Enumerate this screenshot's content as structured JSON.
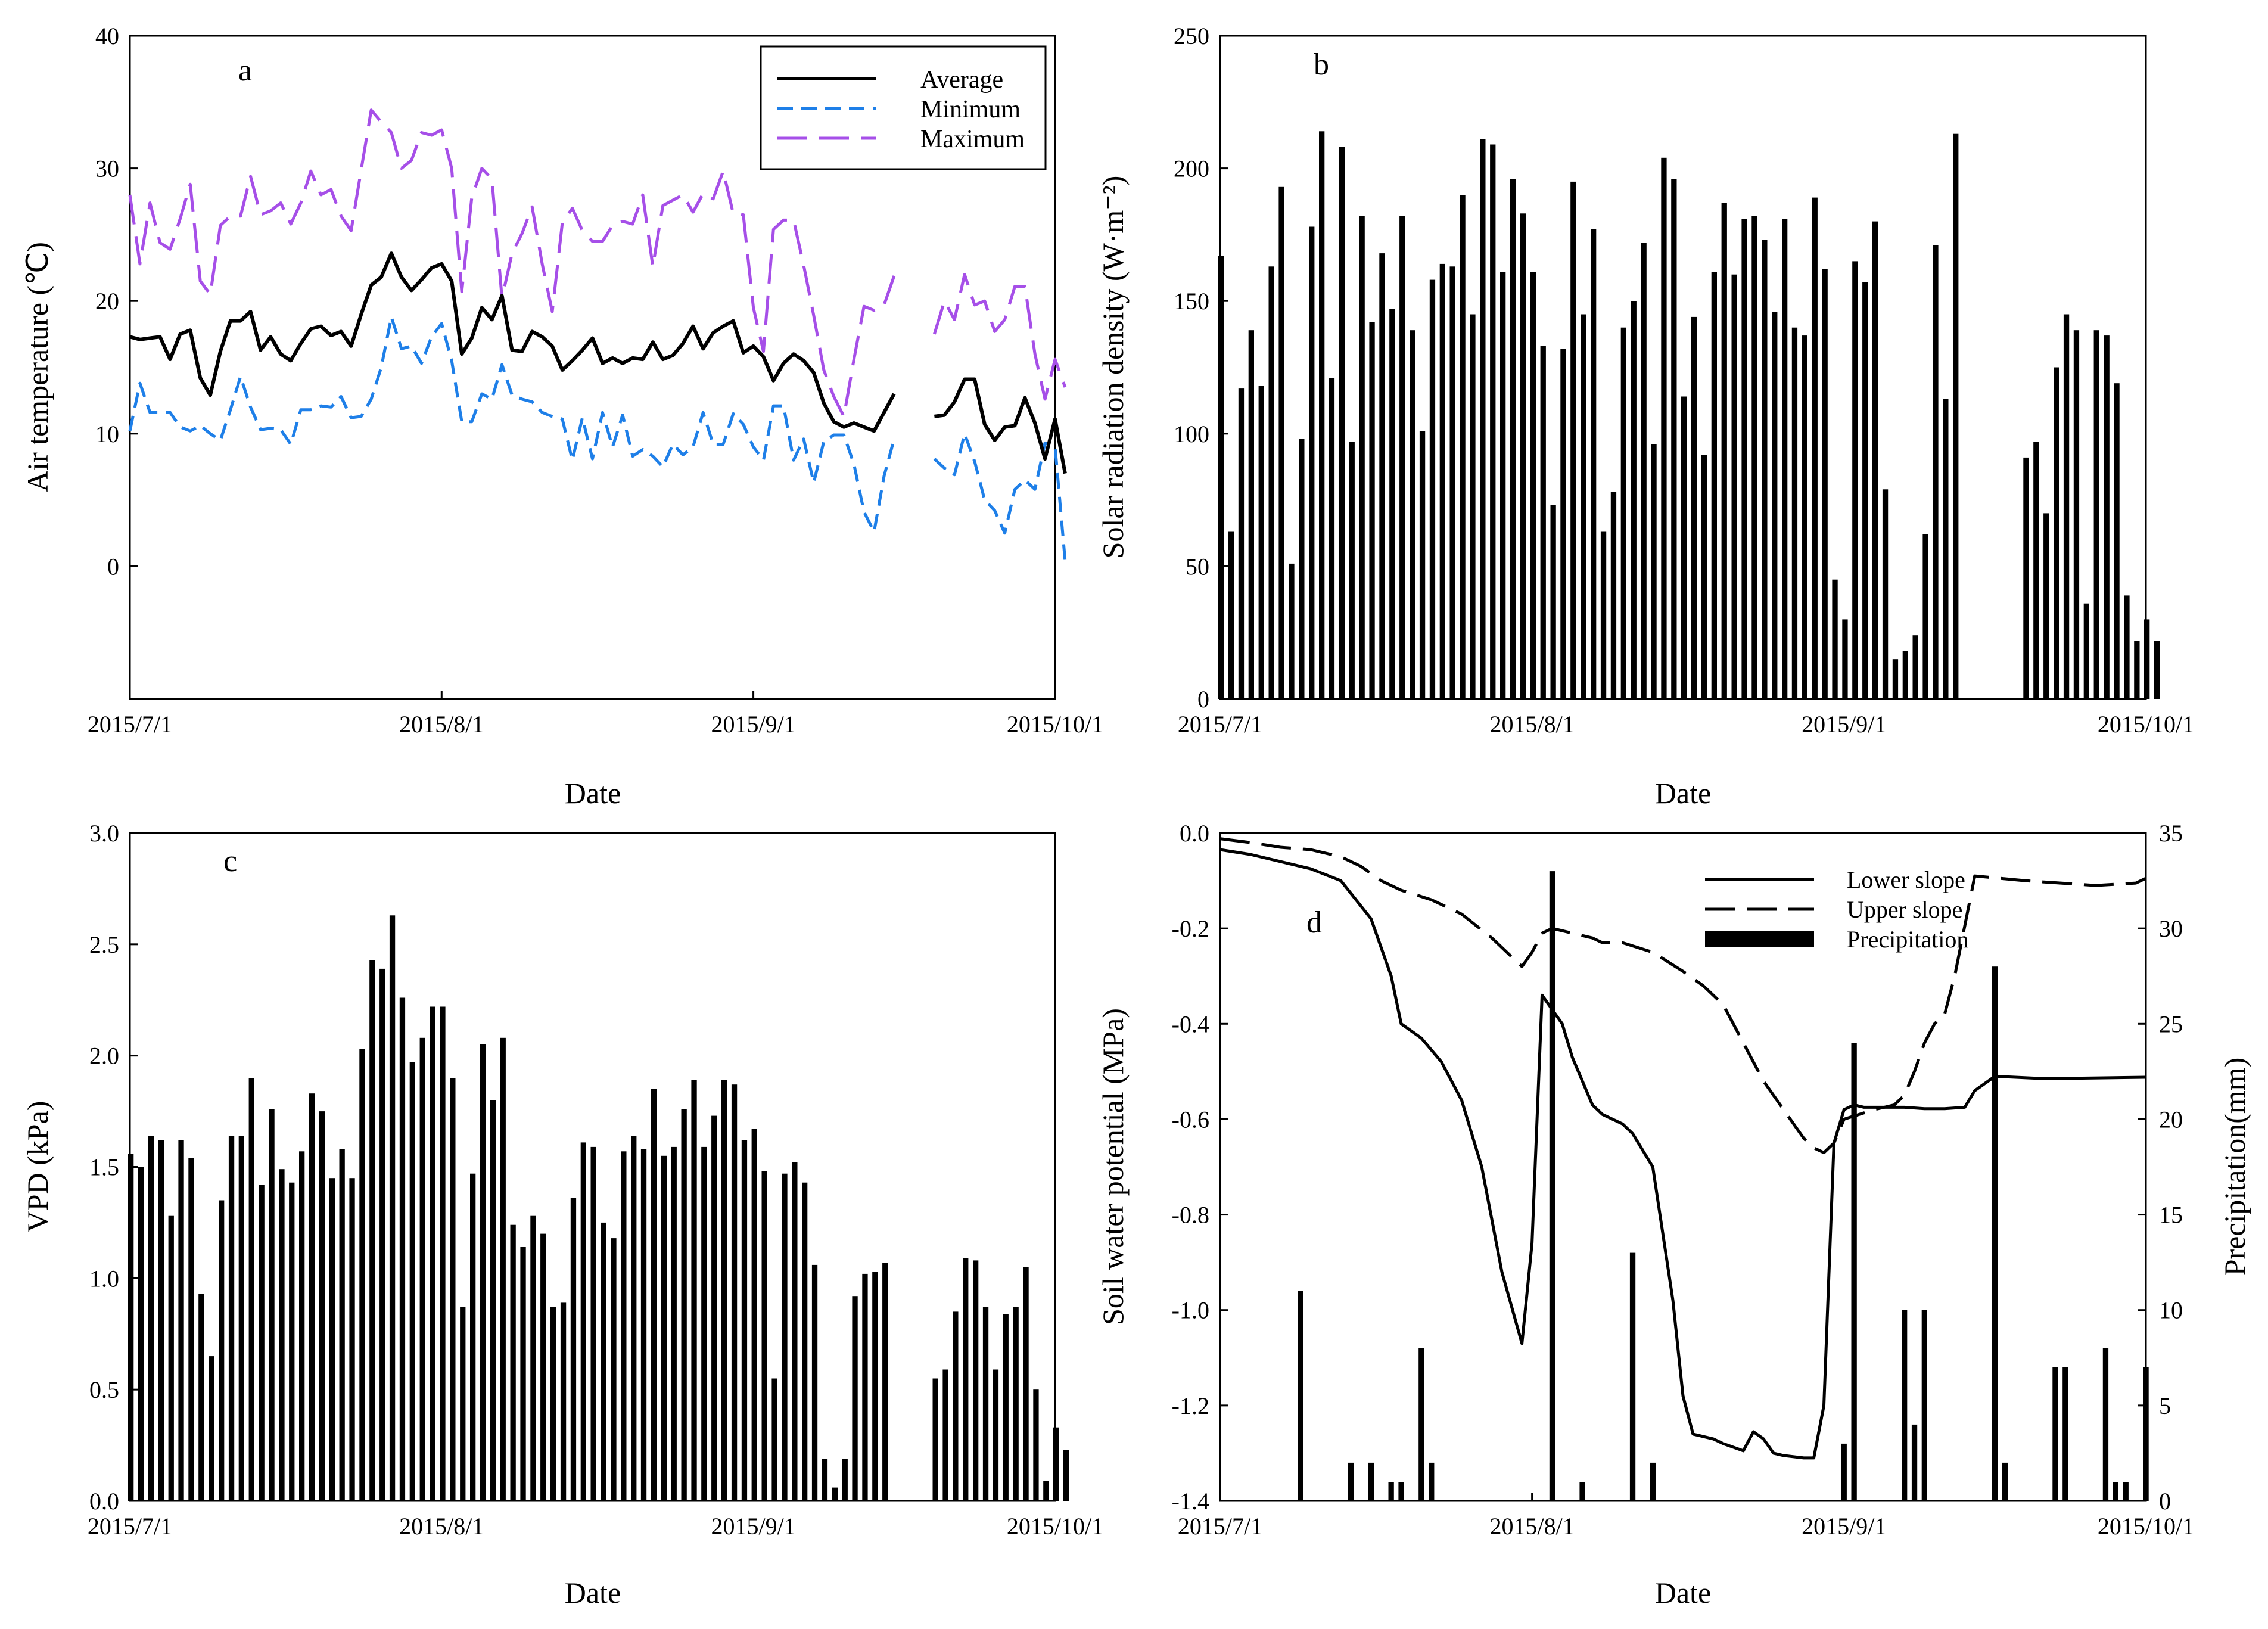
{
  "chart_data": [
    {
      "panel": "a",
      "type": "line",
      "panel_label": "a",
      "xlabel": "Date",
      "ylabel": "Air temperature (℃)",
      "x_tick_labels": [
        "2015/7/1",
        "2015/8/1",
        "2015/9/1",
        "2015/10/1"
      ],
      "xlim": [
        0,
        92
      ],
      "ylim": [
        -10,
        40
      ],
      "y_ticks": [
        0,
        10,
        20,
        30,
        40
      ],
      "legend_position": "top-right",
      "series": [
        {
          "name": "Average",
          "color": "#000000",
          "dash": "solid",
          "values": [
            17.3,
            17.1,
            17.2,
            17.3,
            15.6,
            17.5,
            17.8,
            14.2,
            12.9,
            16.2,
            18.5,
            18.5,
            19.2,
            16.3,
            17.3,
            16.0,
            15.5,
            16.8,
            17.9,
            18.1,
            17.4,
            17.7,
            16.6,
            19.0,
            21.2,
            21.8,
            23.6,
            21.8,
            20.8,
            21.6,
            22.5,
            22.8,
            21.5,
            16.0,
            17.2,
            19.5,
            18.6,
            20.4,
            16.3,
            16.2,
            17.7,
            17.3,
            16.6,
            14.8,
            15.5,
            16.3,
            17.2,
            15.3,
            15.7,
            15.3,
            15.7,
            15.6,
            16.9,
            15.6,
            15.9,
            16.8,
            18.1,
            16.4,
            17.6,
            18.1,
            18.5,
            16.1,
            16.6,
            15.8,
            14.0,
            15.3,
            16.0,
            15.5,
            14.6,
            12.3,
            10.9,
            10.5,
            10.8,
            10.5,
            10.2,
            11.6,
            13.0,
            null,
            null,
            null,
            11.3,
            11.4,
            12.4,
            14.1,
            14.1,
            10.7,
            9.5,
            10.5,
            10.6,
            12.7,
            10.8,
            8.1,
            11.1,
            7.0
          ]
        },
        {
          "name": "Minimum",
          "color": "#1e7fe8",
          "dash": "short",
          "values": [
            10.2,
            13.8,
            11.6,
            11.6,
            11.6,
            10.5,
            10.2,
            10.6,
            10.0,
            9.5,
            11.8,
            14.3,
            12.0,
            10.3,
            10.4,
            10.3,
            9.2,
            11.8,
            11.8,
            12.1,
            12.0,
            12.8,
            11.2,
            11.3,
            12.6,
            15.0,
            18.8,
            16.4,
            16.6,
            15.3,
            17.3,
            18.3,
            15.5,
            10.9,
            10.9,
            13.0,
            12.6,
            15.2,
            12.9,
            12.6,
            12.4,
            11.6,
            11.3,
            11.1,
            8.0,
            11.2,
            8.1,
            11.6,
            9.0,
            11.4,
            8.3,
            8.8,
            8.3,
            7.5,
            9.2,
            8.4,
            9.0,
            11.6,
            9.2,
            9.2,
            11.5,
            10.7,
            9.0,
            8.0,
            12.1,
            12.1,
            8.0,
            9.6,
            6.3,
            9.4,
            9.9,
            9.9,
            7.7,
            4.1,
            2.6,
            6.8,
            9.6,
            null,
            null,
            null,
            8.1,
            7.4,
            6.9,
            10.0,
            7.9,
            5.0,
            4.2,
            2.5,
            5.8,
            6.5,
            5.8,
            9.3,
            9.0,
            0.4
          ]
        },
        {
          "name": "Maximum",
          "color": "#a64fe8",
          "dash": "long",
          "values": [
            28.0,
            22.8,
            27.4,
            24.4,
            23.9,
            26.2,
            28.8,
            21.5,
            20.5,
            25.7,
            26.4,
            26.4,
            29.4,
            26.5,
            26.8,
            27.4,
            25.8,
            27.4,
            29.8,
            28.0,
            28.4,
            26.4,
            25.3,
            29.9,
            34.4,
            33.5,
            32.7,
            30.0,
            30.6,
            32.7,
            32.5,
            32.9,
            30.0,
            20.7,
            27.8,
            30.0,
            29.2,
            20.2,
            23.6,
            25.1,
            27.1,
            22.8,
            19.2,
            25.9,
            27.0,
            25.3,
            24.5,
            24.5,
            25.7,
            26.0,
            25.8,
            28.0,
            22.6,
            27.2,
            27.6,
            28.0,
            26.7,
            28.1,
            27.7,
            29.8,
            26.6,
            26.5,
            19.5,
            16.2,
            25.4,
            26.1,
            26.1,
            22.7,
            18.9,
            14.8,
            12.8,
            11.3,
            15.6,
            19.6,
            19.3,
            19.7,
            21.9,
            null,
            null,
            null,
            17.5,
            20.0,
            18.6,
            22.0,
            19.7,
            20.0,
            17.7,
            18.6,
            21.1,
            21.1,
            16.0,
            12.6,
            15.6,
            13.5
          ]
        }
      ]
    },
    {
      "panel": "b",
      "type": "bar",
      "panel_label": "b",
      "xlabel": "Date",
      "ylabel": "Solar radiation density (W·m⁻²)",
      "x_tick_labels": [
        "2015/7/1",
        "2015/8/1",
        "2015/9/1",
        "2015/10/1"
      ],
      "xlim": [
        0,
        92
      ],
      "ylim": [
        0,
        250
      ],
      "y_ticks": [
        0,
        50,
        100,
        150,
        200,
        250
      ],
      "values": [
        167,
        63,
        117,
        139,
        118,
        163,
        193,
        51,
        98,
        178,
        214,
        121,
        208,
        97,
        182,
        142,
        168,
        147,
        182,
        139,
        101,
        158,
        164,
        163,
        190,
        145,
        211,
        209,
        161,
        196,
        183,
        161,
        133,
        73,
        132,
        195,
        145,
        177,
        63,
        78,
        140,
        150,
        172,
        96,
        204,
        196,
        114,
        144,
        92,
        161,
        187,
        160,
        181,
        182,
        173,
        146,
        181,
        140,
        137,
        189,
        162,
        45,
        30,
        165,
        157,
        180,
        79,
        15,
        18,
        24,
        62,
        171,
        113,
        213,
        null,
        null,
        null,
        null,
        null,
        null,
        91,
        97,
        70,
        125,
        145,
        139,
        36,
        139,
        137,
        119,
        39,
        22,
        30,
        22
      ]
    },
    {
      "panel": "c",
      "type": "bar",
      "panel_label": "c",
      "xlabel": "Date",
      "ylabel": "VPD (kPa)",
      "x_tick_labels": [
        "2015/7/1",
        "2015/8/1",
        "2015/9/1",
        "2015/10/1"
      ],
      "xlim": [
        0,
        92
      ],
      "ylim": [
        0,
        3.0
      ],
      "y_ticks": [
        0.0,
        0.5,
        1.0,
        1.5,
        2.0,
        2.5,
        3.0
      ],
      "values": [
        1.56,
        1.5,
        1.64,
        1.62,
        1.28,
        1.62,
        1.54,
        0.93,
        0.65,
        1.35,
        1.64,
        1.64,
        1.9,
        1.42,
        1.76,
        1.49,
        1.43,
        1.57,
        1.83,
        1.75,
        1.45,
        1.58,
        1.45,
        2.03,
        2.43,
        2.39,
        2.63,
        2.26,
        1.97,
        2.08,
        2.22,
        2.22,
        1.9,
        0.87,
        1.47,
        2.05,
        1.8,
        2.08,
        1.24,
        1.14,
        1.28,
        1.2,
        0.87,
        0.89,
        1.36,
        1.61,
        1.59,
        1.25,
        1.18,
        1.57,
        1.64,
        1.58,
        1.85,
        1.55,
        1.59,
        1.76,
        1.89,
        1.59,
        1.73,
        1.89,
        1.87,
        1.62,
        1.67,
        1.48,
        0.55,
        1.47,
        1.52,
        1.43,
        1.06,
        0.19,
        0.06,
        0.19,
        0.92,
        1.02,
        1.03,
        1.07,
        null,
        null,
        null,
        null,
        0.55,
        0.59,
        0.85,
        1.09,
        1.08,
        0.87,
        0.59,
        0.84,
        0.87,
        1.05,
        0.5,
        0.09,
        0.33,
        0.23
      ]
    },
    {
      "panel": "d",
      "type": "line",
      "panel_label": "d",
      "xlabel": "Date",
      "ylabel": "Soil water potential (MPa)",
      "ylabel_right": "Precipitation(mm)",
      "x_tick_labels": [
        "2015/7/1",
        "2015/8/1",
        "2015/9/1",
        "2015/10/1"
      ],
      "xlim": [
        0,
        92
      ],
      "ylim": [
        -1.4,
        0.0
      ],
      "y_ticks": [
        -1.4,
        -1.2,
        -1.0,
        -0.8,
        -0.6,
        -0.4,
        -0.2,
        0.0
      ],
      "y_tick_labels": [
        "-1.4",
        "-1.2",
        "-1.0",
        "-0.8",
        "-0.6",
        "-0.4",
        "-0.2",
        "0.0"
      ],
      "ylim_right": [
        0,
        35
      ],
      "y_ticks_right": [
        0,
        5,
        10,
        15,
        20,
        25,
        30,
        35
      ],
      "legend_position": "top-right",
      "legend": [
        {
          "name": "Lower slope",
          "style": "solid"
        },
        {
          "name": "Upper slope",
          "style": "dashed"
        },
        {
          "name": "Precipitation",
          "style": "bar"
        }
      ],
      "series": [
        {
          "name": "Lower slope",
          "dash": "solid",
          "x": [
            0,
            3,
            6,
            9,
            12,
            15,
            17,
            18,
            20,
            22,
            24,
            26,
            28,
            30,
            31,
            32,
            33,
            34,
            35,
            37,
            38,
            40,
            41,
            43,
            45,
            46,
            47,
            48,
            49,
            50,
            52,
            53,
            54,
            55,
            56,
            58,
            59,
            60,
            61,
            62,
            63,
            64,
            65,
            68,
            70,
            72,
            74,
            75,
            77,
            82,
            92
          ],
          "y": [
            -0.035,
            -0.045,
            -0.06,
            -0.075,
            -0.1,
            -0.18,
            -0.3,
            -0.4,
            -0.43,
            -0.48,
            -0.56,
            -0.7,
            -0.92,
            -1.07,
            -0.86,
            -0.34,
            -0.37,
            -0.4,
            -0.47,
            -0.57,
            -0.59,
            -0.61,
            -0.63,
            -0.7,
            -0.98,
            -1.18,
            -1.26,
            -1.265,
            -1.27,
            -1.28,
            -1.295,
            -1.255,
            -1.27,
            -1.3,
            -1.305,
            -1.31,
            -1.31,
            -1.2,
            -0.65,
            -0.58,
            -0.57,
            -0.575,
            -0.575,
            -0.575,
            -0.578,
            -0.578,
            -0.575,
            -0.54,
            -0.51,
            -0.515,
            -0.512
          ]
        },
        {
          "name": "Upper slope",
          "dash": "long",
          "x": [
            0,
            3,
            6,
            9,
            12,
            14,
            16,
            18,
            21,
            24,
            27,
            30,
            31,
            32,
            33,
            35,
            37,
            38,
            40,
            43,
            46,
            48,
            50,
            52,
            54,
            56,
            58,
            59,
            60,
            61,
            62,
            65,
            67,
            68,
            69,
            70,
            71,
            72,
            73,
            75,
            80,
            87,
            91,
            92
          ],
          "y": [
            -0.012,
            -0.02,
            -0.03,
            -0.035,
            -0.05,
            -0.07,
            -0.1,
            -0.12,
            -0.14,
            -0.17,
            -0.22,
            -0.28,
            -0.25,
            -0.21,
            -0.2,
            -0.21,
            -0.22,
            -0.23,
            -0.23,
            -0.25,
            -0.29,
            -0.32,
            -0.36,
            -0.44,
            -0.52,
            -0.58,
            -0.64,
            -0.66,
            -0.67,
            -0.65,
            -0.6,
            -0.58,
            -0.57,
            -0.55,
            -0.5,
            -0.44,
            -0.4,
            -0.38,
            -0.3,
            -0.09,
            -0.1,
            -0.11,
            -0.105,
            -0.095
          ]
        },
        {
          "name": "Precipitation",
          "type": "bar",
          "day": [
            8,
            13,
            15,
            17,
            18,
            20,
            21,
            33,
            36,
            41,
            43,
            62,
            63,
            68,
            69,
            70,
            77,
            78,
            83,
            84,
            88,
            89,
            90,
            92
          ],
          "mm": [
            11,
            2,
            2,
            1,
            1,
            8,
            2,
            33,
            1,
            13,
            2,
            3,
            24,
            10,
            4,
            10,
            28,
            2,
            7,
            7,
            8,
            1,
            1,
            7
          ]
        }
      ]
    }
  ]
}
